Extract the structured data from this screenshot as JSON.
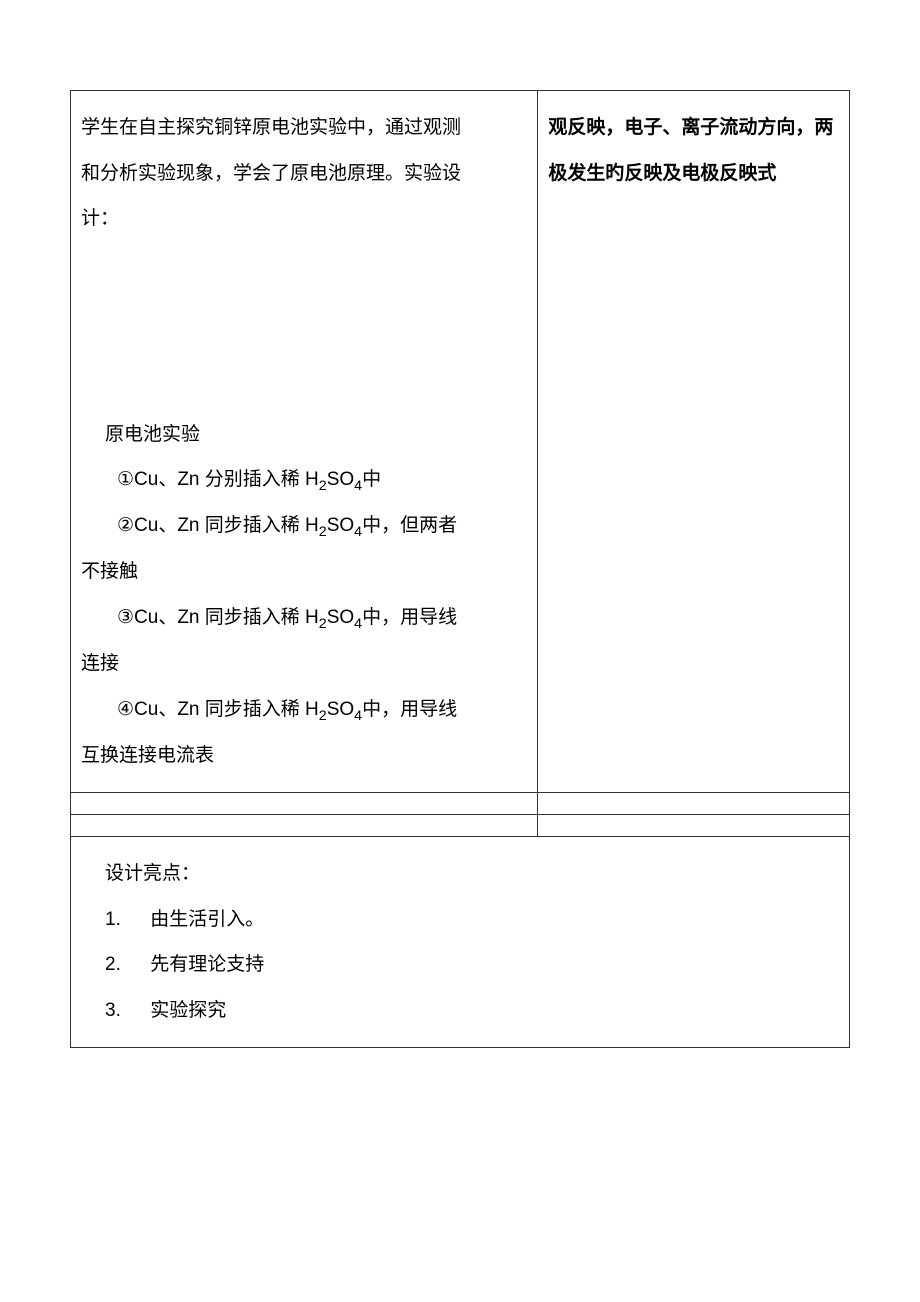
{
  "colors": {
    "text": "#000000",
    "border": "#333333",
    "background": "#ffffff"
  },
  "typography": {
    "body_fontsize": 19,
    "line_height": 2.4,
    "font_family": "SimSun"
  },
  "table": {
    "left_cell": {
      "intro_line1": "学生在自主探究铜锌原电池实验中，通过观测",
      "intro_line2": "和分析实验现象，学会了原电池原理。实验设",
      "intro_line3": "计：",
      "section_title": "原电池实验",
      "item1": "①Cu、Zn 分别插入稀 H",
      "item1_suffix": "中",
      "item2": "②Cu、Zn 同步插入稀 H",
      "item2_suffix": "中，但两者",
      "item2_cont": "不接触",
      "item3": "③Cu、Zn 同步插入稀 H",
      "item3_suffix": "中，用导线",
      "item3_cont": "连接",
      "item4": "④Cu、Zn 同步插入稀 H",
      "item4_suffix": "中，用导线",
      "item4_cont": "互换连接电流表",
      "formula_so4": "SO",
      "sub2": "2",
      "sub4": "4"
    },
    "right_cell": {
      "line1": "观反映，电子、离子流动方向，两",
      "line2": "极发生旳反映及电极反映式"
    }
  },
  "bottom": {
    "title": "设计亮点：",
    "items": [
      {
        "num": "1.",
        "text": "由生活引入。"
      },
      {
        "num": "2.",
        "text": "先有理论支持"
      },
      {
        "num": "3.",
        "text": "实验探究"
      }
    ]
  }
}
